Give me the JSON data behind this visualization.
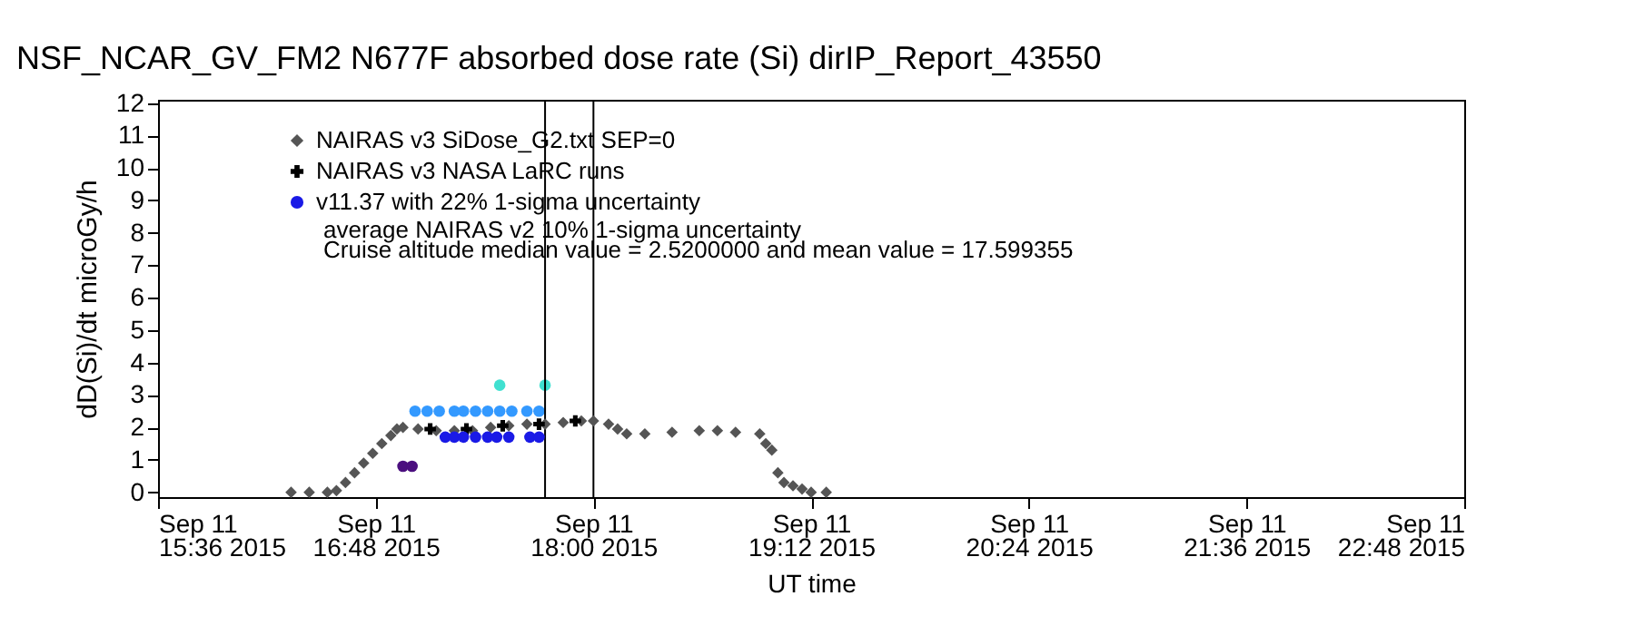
{
  "chart_data": {
    "type": "scatter",
    "title": "NSF_NCAR_GV_FM2   N677F  absorbed dose rate (Si) dirIP_Report_43550",
    "xlabel": "UT time",
    "ylabel": "dD(Si)/dt microGy/h",
    "xlim": [
      "2015-09-11T15:36",
      "2015-09-11T22:48"
    ],
    "ylim": [
      -0.15,
      12.1
    ],
    "xticks": [
      {
        "value": "2015-09-11T15:36",
        "label": "Sep 11\n15:36 2015"
      },
      {
        "value": "2015-09-11T16:48",
        "label": "Sep 11\n16:48 2015"
      },
      {
        "value": "2015-09-11T18:00",
        "label": "Sep 11\n18:00 2015"
      },
      {
        "value": "2015-09-11T19:12",
        "label": "Sep 11\n19:12 2015"
      },
      {
        "value": "2015-09-11T20:24",
        "label": "Sep 11\n20:24 2015"
      },
      {
        "value": "2015-09-11T21:36",
        "label": "Sep 11\n21:36 2015"
      },
      {
        "value": "2015-09-11T22:48",
        "label": "Sep 11\n22:48 2015"
      }
    ],
    "yticks": [
      0,
      1,
      2,
      3,
      4,
      5,
      6,
      7,
      8,
      9,
      10,
      11,
      12
    ],
    "grid": false,
    "legend": "top left",
    "annotations": [
      "average NAIRAS v2 10% 1-sigma uncertainty",
      "Cruise altitude median value = 2.5200000 and mean value = 17.599355"
    ],
    "ref_lines": [
      {
        "axis": "x",
        "value": "2015-09-11T17:44",
        "color": "#000000"
      },
      {
        "axis": "x",
        "value": "2015-09-11T18:00",
        "color": "#000000"
      }
    ],
    "series": [
      {
        "name": "NAIRAS v3 SiDose_G2.txt SEP=0",
        "color": "#555555",
        "marker": "diamond",
        "x": [
          "2015-09-11T16:20",
          "2015-09-11T16:26",
          "2015-09-11T16:32",
          "2015-09-11T16:35",
          "2015-09-11T16:38",
          "2015-09-11T16:41",
          "2015-09-11T16:44",
          "2015-09-11T16:47",
          "2015-09-11T16:50",
          "2015-09-11T16:53",
          "2015-09-11T16:55",
          "2015-09-11T16:57",
          "2015-09-11T17:02",
          "2015-09-11T17:08",
          "2015-09-11T17:14",
          "2015-09-11T17:20",
          "2015-09-11T17:26",
          "2015-09-11T17:32",
          "2015-09-11T17:38",
          "2015-09-11T17:44",
          "2015-09-11T17:50",
          "2015-09-11T17:56",
          "2015-09-11T18:00",
          "2015-09-11T18:05",
          "2015-09-11T18:08",
          "2015-09-11T18:11",
          "2015-09-11T18:17",
          "2015-09-11T18:26",
          "2015-09-11T18:35",
          "2015-09-11T18:41",
          "2015-09-11T18:47",
          "2015-09-11T18:55",
          "2015-09-11T18:57",
          "2015-09-11T18:59",
          "2015-09-11T19:01",
          "2015-09-11T19:03",
          "2015-09-11T19:06",
          "2015-09-11T19:09",
          "2015-09-11T19:12",
          "2015-09-11T19:17"
        ],
        "values": [
          0,
          0,
          0,
          0.05,
          0.3,
          0.6,
          0.9,
          1.2,
          1.5,
          1.75,
          1.95,
          2.0,
          1.95,
          1.9,
          1.9,
          1.9,
          2.0,
          2.05,
          2.1,
          2.1,
          2.15,
          2.2,
          2.2,
          2.1,
          1.95,
          1.8,
          1.8,
          1.85,
          1.9,
          1.9,
          1.85,
          1.8,
          1.5,
          1.3,
          0.6,
          0.3,
          0.2,
          0.1,
          0,
          0
        ]
      },
      {
        "name": "NAIRAS v3 NASA LaRC runs",
        "color": "#000000",
        "marker": "cross",
        "x": [
          "2015-09-11T17:06",
          "2015-09-11T17:18",
          "2015-09-11T17:30",
          "2015-09-11T17:42",
          "2015-09-11T17:54"
        ],
        "values": [
          1.95,
          1.95,
          2.05,
          2.1,
          2.2
        ]
      },
      {
        "name": "v11.37 with 22% 1-sigma uncertainty",
        "color": "#1a1ae6",
        "marker": "circle",
        "x": [
          "2015-09-11T17:11",
          "2015-09-11T17:14",
          "2015-09-11T17:17",
          "2015-09-11T17:21",
          "2015-09-11T17:25",
          "2015-09-11T17:28",
          "2015-09-11T17:32",
          "2015-09-11T17:39",
          "2015-09-11T17:42"
        ],
        "values": [
          1.7,
          1.7,
          1.7,
          1.7,
          1.7,
          1.7,
          1.7,
          1.7,
          1.7
        ]
      },
      {
        "color": "#3399ff",
        "marker": "circle",
        "x": [
          "2015-09-11T17:01",
          "2015-09-11T17:05",
          "2015-09-11T17:09",
          "2015-09-11T17:14",
          "2015-09-11T17:17",
          "2015-09-11T17:21",
          "2015-09-11T17:25",
          "2015-09-11T17:29",
          "2015-09-11T17:33",
          "2015-09-11T17:38",
          "2015-09-11T17:42"
        ],
        "values": [
          2.5,
          2.5,
          2.5,
          2.5,
          2.5,
          2.5,
          2.5,
          2.5,
          2.5,
          2.5,
          2.5
        ]
      },
      {
        "color": "#40e0d0",
        "marker": "circle",
        "x": [
          "2015-09-11T17:29",
          "2015-09-11T17:44"
        ],
        "values": [
          3.3,
          3.3
        ]
      },
      {
        "color": "#4b0f7f",
        "marker": "circle",
        "x": [
          "2015-09-11T16:57",
          "2015-09-11T17:00"
        ],
        "values": [
          0.8,
          0.8
        ]
      }
    ]
  }
}
